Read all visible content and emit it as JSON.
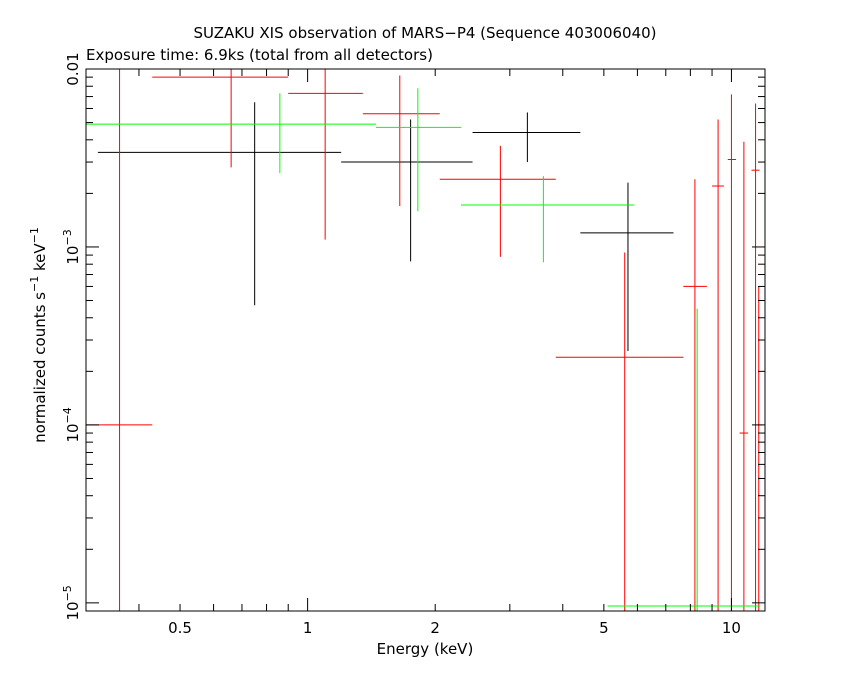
{
  "chart_data": {
    "type": "scatter",
    "title": "SUZAKU XIS observation of MARS−P4 (Sequence 403006040)",
    "subtitle": "Exposure time: 6.9ks (total from all detectors)",
    "xlabel": "Energy (keV)",
    "ylabel_main": "normalized counts s",
    "ylabel_exp1": "−1",
    "ylabel_mid": " keV",
    "ylabel_exp2": "−1",
    "x_scale": "log",
    "y_scale": "log",
    "xlim": [
      0.3,
      12
    ],
    "ylim": [
      9e-06,
      0.01
    ],
    "x_ticks": [
      {
        "value": 0.5,
        "label": "0.5"
      },
      {
        "value": 1,
        "label": "1"
      },
      {
        "value": 2,
        "label": "2"
      },
      {
        "value": 5,
        "label": "5"
      },
      {
        "value": 10,
        "label": "10"
      }
    ],
    "y_major_ticks": [
      {
        "value": 1e-05,
        "base": "10",
        "exp": "−5"
      },
      {
        "value": 0.0001,
        "base": "10",
        "exp": "−4"
      },
      {
        "value": 0.001,
        "base": "10",
        "exp": "−3"
      },
      {
        "value": 0.01,
        "base": "0.01",
        "exp": ""
      }
    ],
    "colors": {
      "black": "#000000",
      "red": "#ff0000",
      "green": "#00ff00",
      "frame": "#000000"
    },
    "series": [
      {
        "color": "#000000",
        "points": [
          {
            "x": 0.75,
            "xlo": 0.32,
            "xhi": 1.2,
            "y": 0.0034,
            "ylo": 0.00047,
            "yhi": 0.0065
          },
          {
            "x": 1.75,
            "xlo": 1.2,
            "xhi": 2.45,
            "y": 0.003,
            "ylo": 0.00083,
            "yhi": 0.0052
          },
          {
            "x": 3.3,
            "xlo": 2.45,
            "xhi": 4.4,
            "y": 0.0044,
            "ylo": 0.003,
            "yhi": 0.0057
          },
          {
            "x": 5.7,
            "xlo": 4.4,
            "xhi": 7.3,
            "y": 0.0012,
            "ylo": 0.00026,
            "yhi": 0.0023
          }
        ]
      },
      {
        "color": "#ff0000",
        "points": [
          {
            "x": 0.36,
            "xlo": 0.3,
            "xhi": 0.43,
            "y": 0.0001,
            "ylo": 9e-06,
            "yhi": 0.01
          },
          {
            "x": 0.66,
            "xlo": 0.43,
            "xhi": 0.9,
            "y": 0.009,
            "ylo": 0.0028,
            "yhi": 0.01
          },
          {
            "x": 1.1,
            "xlo": 0.9,
            "xhi": 1.35,
            "y": 0.0073,
            "ylo": 0.0011,
            "yhi": 0.01
          },
          {
            "x": 1.65,
            "xlo": 1.35,
            "xhi": 2.05,
            "y": 0.0056,
            "ylo": 0.0017,
            "yhi": 0.0092
          },
          {
            "x": 2.85,
            "xlo": 2.05,
            "xhi": 3.85,
            "y": 0.0024,
            "ylo": 0.00088,
            "yhi": 0.0037
          },
          {
            "x": 5.6,
            "xlo": 3.85,
            "xhi": 7.7,
            "y": 0.00024,
            "ylo": 9e-06,
            "yhi": 0.00093
          },
          {
            "x": 8.2,
            "xlo": 7.7,
            "xhi": 8.75,
            "y": 0.0006,
            "ylo": 9e-06,
            "yhi": 0.0024
          },
          {
            "x": 9.3,
            "xlo": 9.0,
            "xhi": 9.6,
            "y": 0.0022,
            "ylo": 9e-06,
            "yhi": 0.0052
          },
          {
            "x": 10.0,
            "xlo": 9.8,
            "xhi": 10.25,
            "y": 0.0031,
            "ylo": 9e-06,
            "yhi": 0.0072
          },
          {
            "x": 10.7,
            "xlo": 10.45,
            "xhi": 10.95,
            "y": 9e-05,
            "ylo": 9e-06,
            "yhi": 0.0039
          },
          {
            "x": 11.4,
            "xlo": 11.15,
            "xhi": 11.65,
            "y": 0.0027,
            "ylo": 9e-06,
            "yhi": 0.0064
          },
          {
            "x": 11.6,
            "xlo": 11.5,
            "xhi": 11.8,
            "y": 0.0001,
            "ylo": 9e-06,
            "yhi": 0.0006
          }
        ]
      },
      {
        "color": "#00ff00",
        "points": [
          {
            "x": 0.86,
            "xlo": 0.3,
            "xhi": 1.45,
            "y": 0.0049,
            "ylo": 0.0026,
            "yhi": 0.0073
          },
          {
            "x": 1.82,
            "xlo": 1.45,
            "xhi": 2.3,
            "y": 0.0047,
            "ylo": 0.00159,
            "yhi": 0.0078
          },
          {
            "x": 3.6,
            "xlo": 2.3,
            "xhi": 5.9,
            "y": 0.00172,
            "ylo": 0.00082,
            "yhi": 0.0025
          },
          {
            "x": 8.3,
            "xlo": 5.1,
            "xhi": 11.7,
            "y": 9.6e-06,
            "ylo": 9e-06,
            "yhi": 0.00045
          }
        ]
      }
    ]
  }
}
